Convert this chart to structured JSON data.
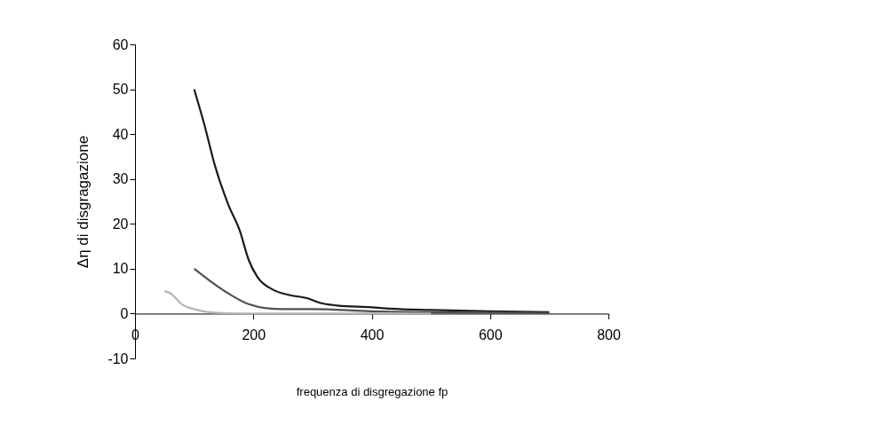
{
  "chart_data": {
    "type": "line",
    "xlabel": "frequenza di disgregazione fp",
    "ylabel": "Δη di disgragazione",
    "xlim": [
      0,
      800
    ],
    "xticks": [
      0,
      200,
      400,
      600,
      800
    ],
    "ylim": [
      -10,
      60
    ],
    "yticks": [
      -10,
      0,
      10,
      20,
      30,
      40,
      50,
      60
    ],
    "grid": false,
    "legend": false,
    "marker": "none",
    "line_style": "solid",
    "series": [
      {
        "color": "#1a1a1a",
        "x": [
          100,
          117,
          135,
          157,
          177,
          192,
          207,
          232,
          262,
          292,
          312,
          342,
          400,
          432,
          500,
          600,
          700
        ],
        "values": [
          50,
          42.2,
          33,
          24.5,
          18.5,
          12,
          8.1,
          5.4,
          4.1,
          3.4,
          2.4,
          1.8,
          1.4,
          1.1,
          0.8,
          0.5,
          0.3
        ]
      },
      {
        "color": "#505050",
        "x": [
          100,
          147,
          192,
          222,
          250,
          300,
          400,
          500,
          600,
          700
        ],
        "values": [
          10,
          5.4,
          2.1,
          1.2,
          1,
          1,
          0.5,
          0.3,
          0.2,
          0.1
        ]
      },
      {
        "color": "#b4b4b4",
        "x": [
          50,
          60,
          80,
          100,
          120,
          150,
          200,
          300,
          400,
          500
        ],
        "values": [
          5,
          4.5,
          2,
          1,
          0.4,
          0.1,
          0,
          0,
          0,
          0
        ]
      }
    ]
  }
}
